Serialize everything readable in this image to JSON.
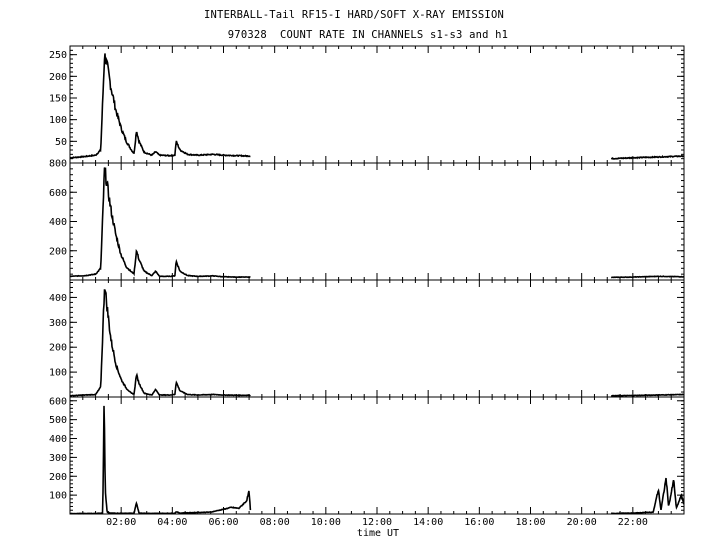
{
  "title_line1": "INTERBALL-Tail RF15-I HARD/SOFT X-RAY EMISSION",
  "title_line2": "970328  COUNT RATE IN CHANNELS s1-s3 and h1",
  "chart_data": {
    "type": "line",
    "xlabel": "time UT",
    "x_unit": "hours UT",
    "xlim": [
      0,
      24
    ],
    "x_ticks": [
      2,
      4,
      6,
      8,
      10,
      12,
      14,
      16,
      18,
      20,
      22
    ],
    "x_tick_labels": [
      "02:00",
      "04:00",
      "06:00",
      "08:00",
      "10:00",
      "12:00",
      "14:00",
      "16:00",
      "18:00",
      "20:00",
      "22:00"
    ],
    "data_gap_hours": [
      7.05,
      21.15
    ],
    "panels": [
      {
        "ylim": [
          0,
          270
        ],
        "yticks": [
          50,
          100,
          150,
          200,
          250
        ],
        "points": [
          [
            0,
            12
          ],
          [
            0.6,
            15
          ],
          [
            1.0,
            18
          ],
          [
            1.2,
            30
          ],
          [
            1.35,
            250
          ],
          [
            1.45,
            225
          ],
          [
            1.6,
            175
          ],
          [
            1.8,
            120
          ],
          [
            2.0,
            80
          ],
          [
            2.2,
            50
          ],
          [
            2.4,
            30
          ],
          [
            2.5,
            22
          ],
          [
            2.6,
            75
          ],
          [
            2.7,
            50
          ],
          [
            2.9,
            25
          ],
          [
            3.2,
            18
          ],
          [
            3.35,
            26
          ],
          [
            3.5,
            18
          ],
          [
            3.9,
            17
          ],
          [
            4.1,
            18
          ],
          [
            4.15,
            50
          ],
          [
            4.3,
            30
          ],
          [
            4.6,
            20
          ],
          [
            5.0,
            18
          ],
          [
            5.6,
            20
          ],
          [
            6.0,
            18
          ],
          [
            6.5,
            17
          ],
          [
            7.05,
            16
          ],
          [
            21.15,
            10
          ],
          [
            22.0,
            12
          ],
          [
            23.0,
            14
          ],
          [
            24,
            16
          ]
        ]
      },
      {
        "ylim": [
          0,
          800
        ],
        "yticks": [
          200,
          400,
          600,
          800
        ],
        "points": [
          [
            0,
            25
          ],
          [
            0.6,
            30
          ],
          [
            1.0,
            40
          ],
          [
            1.2,
            80
          ],
          [
            1.35,
            760
          ],
          [
            1.45,
            650
          ],
          [
            1.6,
            480
          ],
          [
            1.8,
            300
          ],
          [
            2.0,
            170
          ],
          [
            2.2,
            90
          ],
          [
            2.4,
            55
          ],
          [
            2.5,
            45
          ],
          [
            2.6,
            200
          ],
          [
            2.7,
            140
          ],
          [
            2.9,
            60
          ],
          [
            3.2,
            30
          ],
          [
            3.35,
            60
          ],
          [
            3.5,
            25
          ],
          [
            3.9,
            25
          ],
          [
            4.1,
            28
          ],
          [
            4.15,
            130
          ],
          [
            4.3,
            60
          ],
          [
            4.6,
            30
          ],
          [
            5.0,
            25
          ],
          [
            5.6,
            28
          ],
          [
            6.0,
            22
          ],
          [
            6.5,
            20
          ],
          [
            7.05,
            20
          ],
          [
            21.15,
            18
          ],
          [
            22.0,
            20
          ],
          [
            23.0,
            25
          ],
          [
            24,
            22
          ]
        ]
      },
      {
        "ylim": [
          0,
          470
        ],
        "yticks": [
          100,
          200,
          300,
          400
        ],
        "points": [
          [
            0,
            5
          ],
          [
            0.6,
            8
          ],
          [
            1.0,
            10
          ],
          [
            1.2,
            40
          ],
          [
            1.35,
            450
          ],
          [
            1.45,
            360
          ],
          [
            1.6,
            230
          ],
          [
            1.8,
            130
          ],
          [
            2.0,
            70
          ],
          [
            2.2,
            35
          ],
          [
            2.4,
            15
          ],
          [
            2.5,
            12
          ],
          [
            2.6,
            90
          ],
          [
            2.7,
            55
          ],
          [
            2.9,
            15
          ],
          [
            3.2,
            8
          ],
          [
            3.35,
            30
          ],
          [
            3.5,
            8
          ],
          [
            3.9,
            8
          ],
          [
            4.1,
            10
          ],
          [
            4.15,
            60
          ],
          [
            4.3,
            25
          ],
          [
            4.6,
            10
          ],
          [
            5.0,
            8
          ],
          [
            5.6,
            10
          ],
          [
            6.0,
            8
          ],
          [
            6.5,
            7
          ],
          [
            7.05,
            7
          ],
          [
            21.15,
            5
          ],
          [
            22.0,
            6
          ],
          [
            23.0,
            8
          ],
          [
            24,
            10
          ]
        ]
      },
      {
        "ylim": [
          0,
          620
        ],
        "yticks": [
          100,
          200,
          300,
          400,
          500,
          600
        ],
        "points": [
          [
            0,
            2
          ],
          [
            1.0,
            3
          ],
          [
            1.28,
            5
          ],
          [
            1.33,
            600
          ],
          [
            1.38,
            120
          ],
          [
            1.45,
            10
          ],
          [
            1.6,
            4
          ],
          [
            2.5,
            4
          ],
          [
            2.6,
            60
          ],
          [
            2.7,
            5
          ],
          [
            3.2,
            3
          ],
          [
            4.1,
            4
          ],
          [
            4.15,
            12
          ],
          [
            4.3,
            5
          ],
          [
            5.0,
            8
          ],
          [
            5.5,
            10
          ],
          [
            6.0,
            25
          ],
          [
            6.3,
            35
          ],
          [
            6.6,
            30
          ],
          [
            6.9,
            70
          ],
          [
            7.0,
            120
          ],
          [
            7.05,
            20
          ],
          [
            21.15,
            3
          ],
          [
            22.0,
            5
          ],
          [
            22.8,
            10
          ],
          [
            23.0,
            130
          ],
          [
            23.1,
            20
          ],
          [
            23.3,
            190
          ],
          [
            23.4,
            40
          ],
          [
            23.6,
            180
          ],
          [
            23.7,
            30
          ],
          [
            23.9,
            100
          ],
          [
            24,
            50
          ]
        ]
      }
    ]
  }
}
